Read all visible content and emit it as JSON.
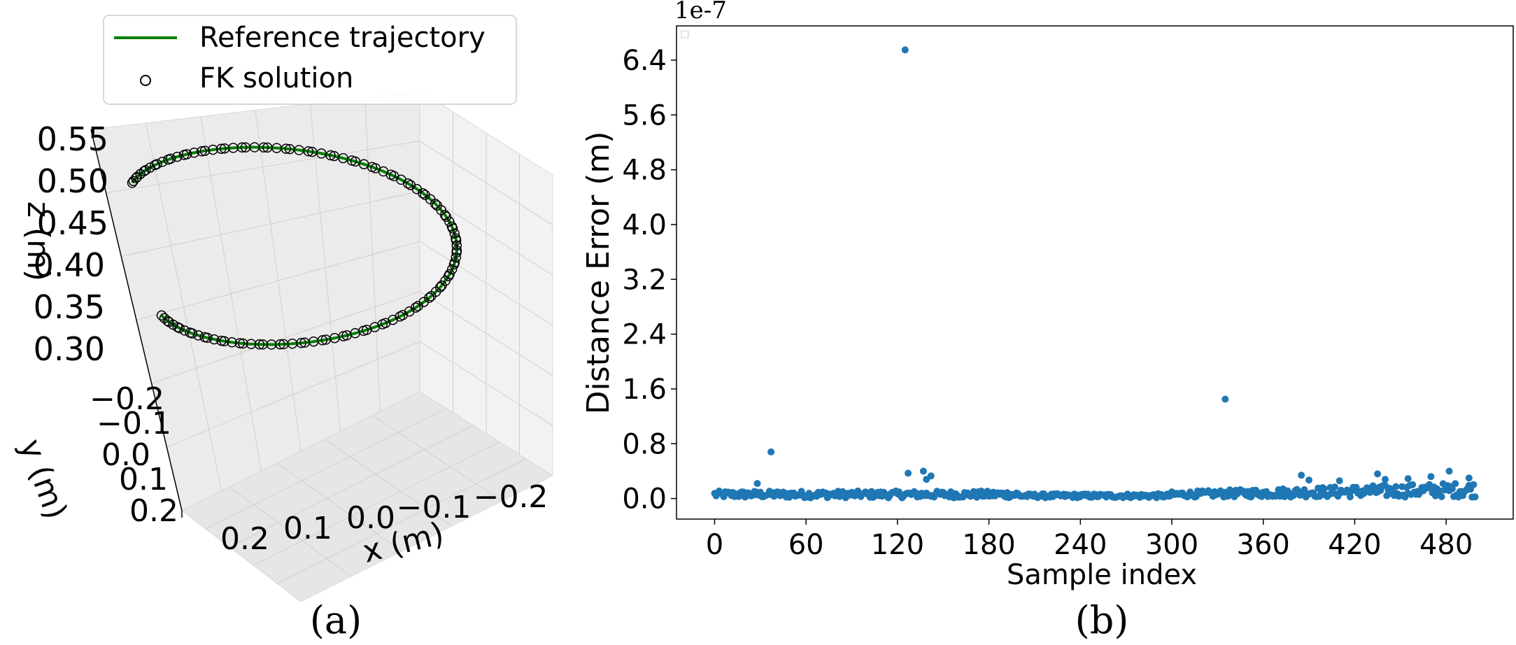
{
  "chart_data": [
    {
      "type": "line",
      "panel_label": "(a)",
      "projection": "3d",
      "legend": {
        "placement": "top",
        "entries": [
          {
            "label": "Reference trajectory",
            "marker": "line",
            "color": "#008000"
          },
          {
            "label": "FK solution",
            "marker": "open-circle",
            "color": "#000000"
          }
        ]
      },
      "xlabel": "x (m)",
      "ylabel": "y (m)",
      "zlabel": "z (m)",
      "x_ticks": [
        "0.2",
        "0.1",
        "0.0",
        "−0.1",
        "−0.2"
      ],
      "y_ticks": [
        "−0.2",
        "−0.1",
        "0.0",
        "0.1",
        "0.2"
      ],
      "z_ticks": [
        "0.55",
        "0.50",
        "0.45",
        "0.40",
        "0.35",
        "0.30"
      ],
      "zlim": [
        0.3,
        0.55
      ],
      "grid": true,
      "series": [
        {
          "name": "Reference trajectory",
          "shape": "helix",
          "radius": 0.2,
          "turns": 0.92,
          "z_range": [
            0.3,
            0.5
          ],
          "color": "#008000"
        },
        {
          "name": "FK solution",
          "samples": 500,
          "marker": "open-circle",
          "note_visible": "circles lie on the reference curve"
        }
      ]
    },
    {
      "type": "scatter",
      "panel_label": "(b)",
      "xlabel": "Sample index",
      "ylabel": "Distance Error (m)",
      "scale_label": "1e-7",
      "x_ticks": [
        "0",
        "60",
        "120",
        "180",
        "240",
        "300",
        "360",
        "420",
        "480"
      ],
      "y_ticks": [
        "0.0",
        "0.8",
        "1.6",
        "2.4",
        "3.2",
        "4.0",
        "4.8",
        "5.6",
        "6.4"
      ],
      "xlim": [
        -25,
        524
      ],
      "ylim": [
        -0.3,
        6.9
      ],
      "grid": false,
      "legend": {
        "placement": "top-left",
        "entries": []
      },
      "color": "#1f77b4",
      "series": [
        {
          "name": "",
          "samples": 500,
          "baseline_noise_max": 0.25,
          "outliers": [
            {
              "x": 125,
              "y": 6.55
            },
            {
              "x": 335,
              "y": 1.45
            },
            {
              "x": 37,
              "y": 0.68
            },
            {
              "x": 137,
              "y": 0.4
            },
            {
              "x": 127,
              "y": 0.37
            },
            {
              "x": 142,
              "y": 0.33
            },
            {
              "x": 139,
              "y": 0.28
            },
            {
              "x": 28,
              "y": 0.22
            },
            {
              "x": 385,
              "y": 0.34
            },
            {
              "x": 435,
              "y": 0.36
            },
            {
              "x": 482,
              "y": 0.4
            },
            {
              "x": 470,
              "y": 0.32
            },
            {
              "x": 495,
              "y": 0.3
            },
            {
              "x": 440,
              "y": 0.28
            },
            {
              "x": 455,
              "y": 0.29
            },
            {
              "x": 390,
              "y": 0.27
            },
            {
              "x": 410,
              "y": 0.26
            }
          ]
        }
      ]
    }
  ]
}
